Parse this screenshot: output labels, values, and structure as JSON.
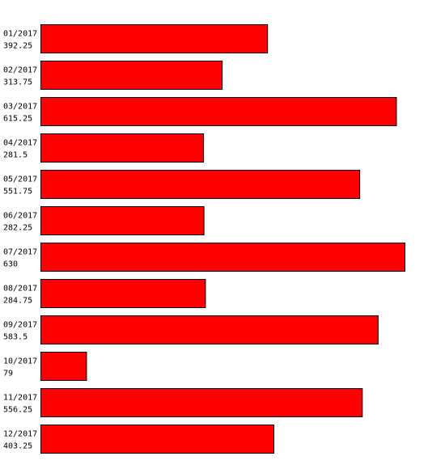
{
  "chart_data": {
    "type": "bar",
    "orientation": "horizontal",
    "categories": [
      "01/2017",
      "02/2017",
      "03/2017",
      "04/2017",
      "05/2017",
      "06/2017",
      "07/2017",
      "08/2017",
      "09/2017",
      "10/2017",
      "11/2017",
      "12/2017"
    ],
    "values": [
      392.25,
      313.75,
      615.25,
      281.5,
      551.75,
      282.25,
      630,
      284.75,
      583.5,
      79,
      556.25,
      403.25
    ],
    "color": "#ff0000"
  }
}
